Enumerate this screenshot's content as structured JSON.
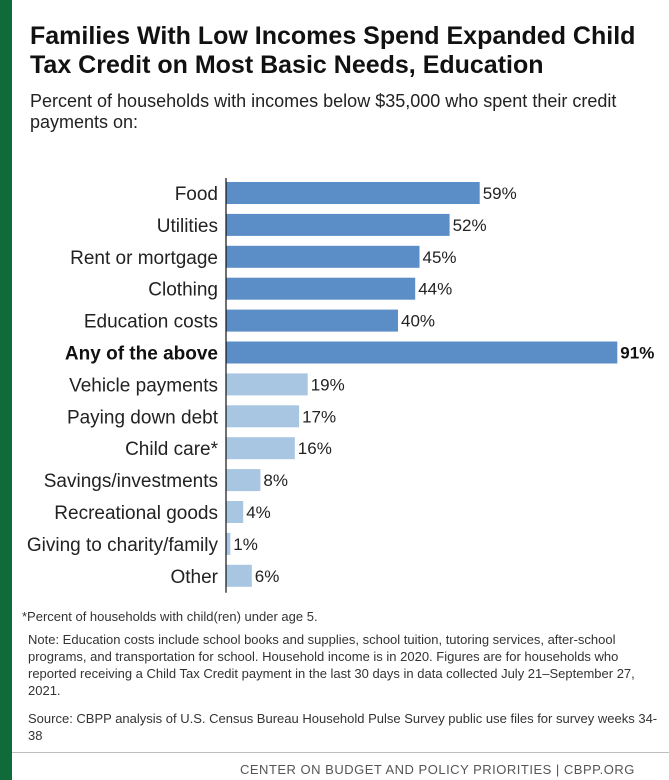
{
  "title": "Families With Low Incomes Spend Expanded Child Tax Credit on Most Basic Needs, Education",
  "subtitle": "Percent of households with incomes below $35,000 who spent their credit payments on:",
  "chart_data": {
    "type": "bar",
    "orientation": "horizontal",
    "categories": [
      "Food",
      "Utilities",
      "Rent or mortgage",
      "Clothing",
      "Education costs",
      "Any of the above",
      "Vehicle payments",
      "Paying down debt",
      "Child care*",
      "Savings/investments",
      "Recreational goods",
      "Giving to charity/family",
      "Other"
    ],
    "values": [
      59,
      52,
      45,
      44,
      40,
      91,
      19,
      17,
      16,
      8,
      4,
      1,
      6
    ],
    "value_labels": [
      "59%",
      "52%",
      "45%",
      "44%",
      "40%",
      "91%",
      "19%",
      "17%",
      "16%",
      "8%",
      "4%",
      "1%",
      "6%"
    ],
    "highlight_category": "Any of the above",
    "xlim": [
      0,
      100
    ],
    "xlabel": "",
    "ylabel": "",
    "grid": false,
    "colors": {
      "basic_needs": "#5b8ec6",
      "other": "#a8c6e2",
      "axis": "#111111"
    }
  },
  "footnote": "*Percent of households with child(ren) under age 5.",
  "note": "Note: Education costs include school books and supplies, school tuition, tutoring services, after-school programs, and transportation for school. Household income is in 2020. Figures are for households who reported receiving a Child Tax Credit payment in the last 30 days in data collected July 21–September 27, 2021.",
  "source": "Source: CBPP analysis of U.S. Census Bureau Household Pulse Survey public use files for survey weeks 34-38",
  "credit": "CENTER ON BUDGET AND POLICY PRIORITIES | CBPP.ORG"
}
